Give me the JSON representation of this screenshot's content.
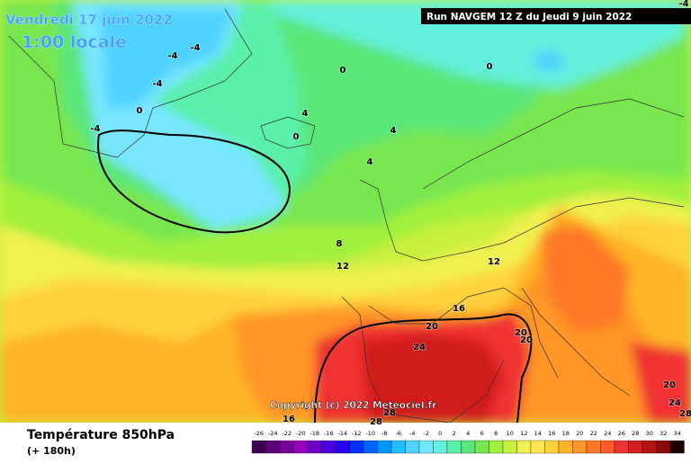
{
  "header": {
    "date": "Vendredi 17 juin 2022",
    "time": "1:00 locale",
    "run": "Run NAVGEM 12 Z du Jeudi 9 juin 2022"
  },
  "map": {
    "copyright": "Copyright (c) 2022 Meteociel.fr",
    "contour_labels": [
      "-4",
      "-4",
      "-4",
      "-4",
      "0",
      "0",
      "0",
      "4",
      "0",
      "4",
      "4",
      "8",
      "12",
      "12",
      "16",
      "20",
      "24",
      "20",
      "20",
      "20",
      "24",
      "28",
      "28",
      "28",
      "16",
      "-4"
    ]
  },
  "footer": {
    "title": "Température 850hPa",
    "subtitle": "(+ 180h)"
  },
  "colorbar": {
    "ticks": [
      -26,
      -24,
      -22,
      -20,
      -18,
      -16,
      -14,
      -12,
      -10,
      -8,
      -6,
      -4,
      -2,
      0,
      2,
      4,
      6,
      8,
      10,
      12,
      14,
      16,
      18,
      20,
      22,
      24,
      26,
      28,
      30,
      32,
      34
    ],
    "colors": [
      "#3c0050",
      "#5a0078",
      "#78009b",
      "#9600be",
      "#6e00c8",
      "#4b00dc",
      "#2800f0",
      "#0032ff",
      "#0064ff",
      "#0096ff",
      "#1ebeff",
      "#50d2ff",
      "#78e6ff",
      "#64f0dc",
      "#5af0aa",
      "#5ae678",
      "#78e650",
      "#a0f03c",
      "#c8f03c",
      "#f0f050",
      "#ffe650",
      "#ffd23c",
      "#ffb428",
      "#ff9628",
      "#ff7828",
      "#ff5a28",
      "#f03232",
      "#d21e1e",
      "#b41414",
      "#8c0a0a",
      "#1e0000"
    ]
  }
}
